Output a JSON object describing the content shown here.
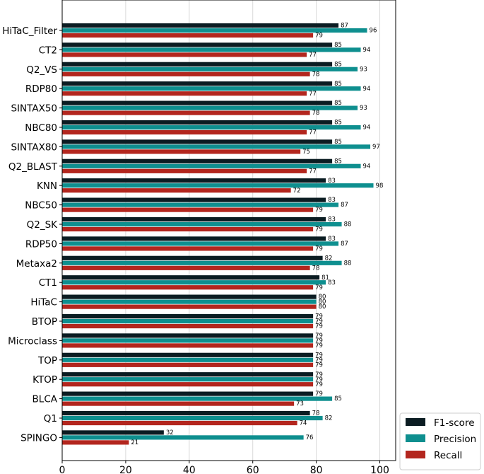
{
  "chart_data": {
    "type": "bar",
    "orientation": "horizontal",
    "categories": [
      "HiTaC_Filter",
      "CT2",
      "Q2_VS",
      "RDP80",
      "SINTAX50",
      "NBC80",
      "SINTAX80",
      "Q2_BLAST",
      "KNN",
      "NBC50",
      "Q2_SK",
      "RDP50",
      "Metaxa2",
      "CT1",
      "HiTaC",
      "BTOP",
      "Microclass",
      "TOP",
      "KTOP",
      "BLCA",
      "Q1",
      "SPINGO"
    ],
    "series": [
      {
        "name": "F1-score",
        "color": "#0b1c22",
        "values": [
          87,
          85,
          85,
          85,
          85,
          85,
          85,
          85,
          83,
          83,
          83,
          83,
          82,
          81,
          80,
          79,
          79,
          79,
          79,
          79,
          78,
          32
        ]
      },
      {
        "name": "Precision",
        "color": "#0e8f8f",
        "values": [
          96,
          94,
          93,
          94,
          93,
          94,
          97,
          94,
          98,
          87,
          88,
          87,
          88,
          83,
          80,
          79,
          79,
          79,
          79,
          85,
          82,
          76
        ]
      },
      {
        "name": "Recall",
        "color": "#b3261e",
        "values": [
          79,
          77,
          78,
          77,
          78,
          77,
          75,
          77,
          72,
          79,
          79,
          79,
          78,
          79,
          80,
          79,
          79,
          79,
          79,
          73,
          74,
          21
        ]
      }
    ],
    "xlim": [
      0,
      105
    ],
    "xticks": [
      "0",
      "20",
      "40",
      "60",
      "80",
      "100"
    ],
    "grid": true,
    "legend_position": "bottom-right"
  }
}
